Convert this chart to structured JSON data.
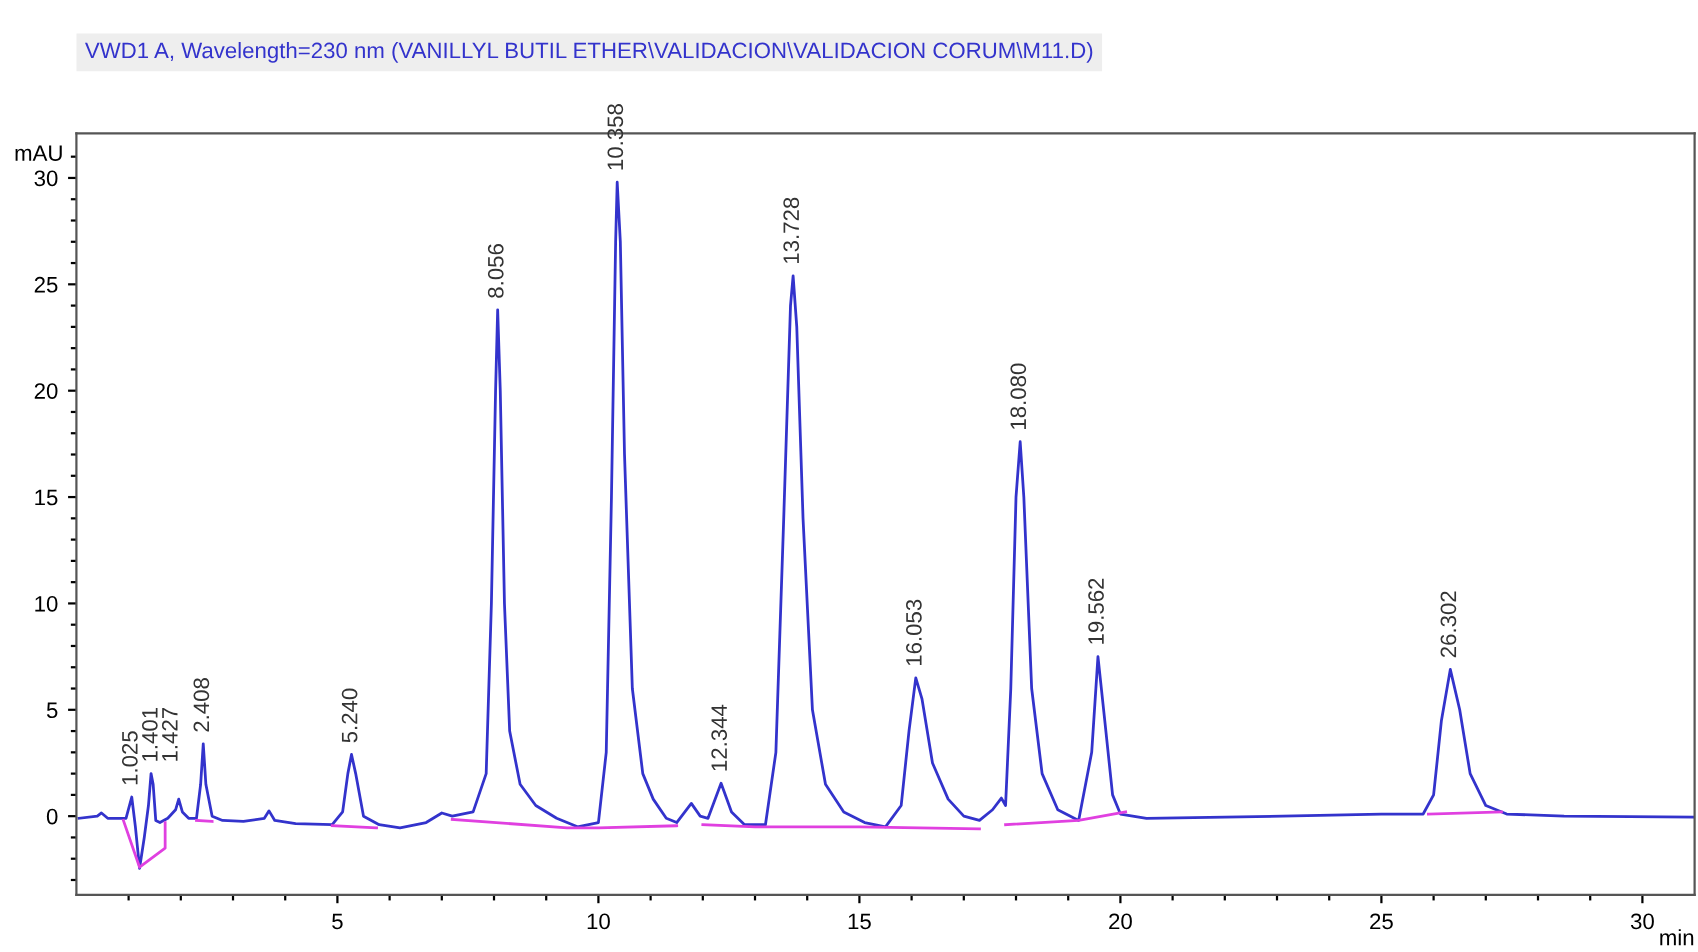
{
  "chart_data": {
    "type": "line",
    "title": "VWD1 A, Wavelength=230 nm (VANILLYL BUTIL ETHER\\VALIDACION\\VALIDACION CORUM\\M11.D)",
    "xlabel": "min",
    "ylabel": "mAU",
    "xlim": [
      0,
      31
    ],
    "ylim": [
      -3.7,
      32.1
    ],
    "xticks": [
      {
        "value": 1,
        "label": null
      },
      {
        "value": 2,
        "label": null
      },
      {
        "value": 3,
        "label": null
      },
      {
        "value": 4,
        "label": null
      },
      5,
      {
        "value": 6,
        "label": null
      },
      {
        "value": 7,
        "label": null
      },
      {
        "value": 8,
        "label": null
      },
      {
        "value": 9,
        "label": null
      },
      10,
      {
        "value": 11,
        "label": null
      },
      {
        "value": 12,
        "label": null
      },
      {
        "value": 13,
        "label": null
      },
      {
        "value": 14,
        "label": null
      },
      15,
      {
        "value": 16,
        "label": null
      },
      {
        "value": 17,
        "label": null
      },
      {
        "value": 18,
        "label": null
      },
      {
        "value": 19,
        "label": null
      },
      20,
      {
        "value": 21,
        "label": null
      },
      {
        "value": 22,
        "label": null
      },
      {
        "value": 23,
        "label": null
      },
      {
        "value": 24,
        "label": null
      },
      25,
      {
        "value": 26,
        "label": null
      },
      {
        "value": 27,
        "label": null
      },
      {
        "value": 28,
        "label": null
      },
      {
        "value": 29,
        "label": null
      },
      30
    ],
    "yticks": [
      {
        "value": -3,
        "label": null
      },
      {
        "value": -2,
        "label": null
      },
      {
        "value": -1,
        "label": null
      },
      0,
      {
        "value": 1,
        "label": null
      },
      {
        "value": 2,
        "label": null
      },
      {
        "value": 3,
        "label": null
      },
      {
        "value": 4,
        "label": null
      },
      5,
      {
        "value": 6,
        "label": null
      },
      {
        "value": 7,
        "label": null
      },
      {
        "value": 8,
        "label": null
      },
      {
        "value": 9,
        "label": null
      },
      10,
      {
        "value": 11,
        "label": null
      },
      {
        "value": 12,
        "label": null
      },
      {
        "value": 13,
        "label": null
      },
      {
        "value": 14,
        "label": null
      },
      15,
      {
        "value": 16,
        "label": null
      },
      {
        "value": 17,
        "label": null
      },
      {
        "value": 18,
        "label": null
      },
      {
        "value": 19,
        "label": null
      },
      20,
      {
        "value": 21,
        "label": null
      },
      {
        "value": 22,
        "label": null
      },
      {
        "value": 23,
        "label": null
      },
      {
        "value": 24,
        "label": null
      },
      25,
      {
        "value": 26,
        "label": null
      },
      {
        "value": 27,
        "label": null
      },
      {
        "value": 28,
        "label": null
      },
      {
        "value": 29,
        "label": null
      },
      30,
      {
        "value": 31,
        "label": null
      }
    ],
    "grid": false,
    "legend": false,
    "marker": "none",
    "line_style": "solid",
    "series": [
      {
        "color": "#3333cc",
        "x": [
          0.05,
          0.4,
          0.48,
          0.6,
          0.95,
          1.06,
          1.13,
          1.21,
          1.3,
          1.38,
          1.43,
          1.47,
          1.52,
          1.6,
          1.75,
          1.9,
          1.96,
          2.03,
          2.15,
          2.3,
          2.38,
          2.43,
          2.48,
          2.6,
          2.8,
          3.2,
          3.6,
          3.69,
          3.8,
          4.2,
          4.9,
          5.1,
          5.2,
          5.27,
          5.35,
          5.5,
          5.8,
          6.2,
          6.7,
          7.0,
          7.2,
          7.6,
          7.85,
          7.95,
          8.03,
          8.07,
          8.12,
          8.2,
          8.3,
          8.5,
          8.8,
          9.2,
          9.6,
          10.0,
          10.15,
          10.25,
          10.33,
          10.36,
          10.42,
          10.5,
          10.65,
          10.85,
          11.05,
          11.3,
          11.5,
          11.78,
          11.95,
          12.1,
          12.35,
          12.55,
          12.8,
          13.2,
          13.4,
          13.55,
          13.68,
          13.73,
          13.8,
          13.92,
          14.1,
          14.35,
          14.7,
          15.1,
          15.5,
          15.8,
          15.95,
          16.08,
          16.2,
          16.4,
          16.7,
          17.0,
          17.3,
          17.55,
          17.72,
          17.8,
          17.9,
          18.0,
          18.08,
          18.15,
          18.3,
          18.5,
          18.8,
          19.2,
          19.45,
          19.57,
          19.7,
          19.85,
          20.0,
          20.5,
          22.0,
          25.0,
          25.8,
          26.0,
          26.15,
          26.32,
          26.5,
          26.7,
          27.0,
          27.4,
          28.5,
          31.0
        ],
        "values": [
          -0.1,
          0.0,
          0.15,
          -0.1,
          -0.1,
          0.9,
          -0.5,
          -2.45,
          -1.0,
          0.5,
          2.0,
          1.5,
          -0.2,
          -0.3,
          -0.1,
          0.3,
          0.8,
          0.2,
          -0.1,
          -0.1,
          1.5,
          3.4,
          1.5,
          0.0,
          -0.2,
          -0.25,
          -0.1,
          0.25,
          -0.2,
          -0.35,
          -0.4,
          0.2,
          2.0,
          2.9,
          2.0,
          0.0,
          -0.4,
          -0.55,
          -0.3,
          0.15,
          0.0,
          0.2,
          2.0,
          10.0,
          20.0,
          23.8,
          20.0,
          10.0,
          4.0,
          1.5,
          0.5,
          -0.1,
          -0.5,
          -0.3,
          3.0,
          15.0,
          27.0,
          29.8,
          27.0,
          17.0,
          6.0,
          2.0,
          0.8,
          -0.1,
          -0.3,
          0.6,
          0.0,
          -0.1,
          1.55,
          0.2,
          -0.4,
          -0.4,
          3.0,
          14.0,
          24.0,
          25.4,
          23.0,
          14.0,
          5.0,
          1.5,
          0.2,
          -0.3,
          -0.5,
          0.5,
          4.0,
          6.5,
          5.5,
          2.5,
          0.8,
          0.0,
          -0.2,
          0.3,
          0.85,
          0.5,
          6.0,
          15.0,
          17.6,
          15.0,
          6.0,
          2.0,
          0.3,
          -0.2,
          3.0,
          7.5,
          4.5,
          1.0,
          0.1,
          -0.1,
          -0.05,
          0.1,
          0.1,
          1.0,
          4.5,
          6.9,
          5.0,
          2.0,
          0.5,
          0.1,
          0.0,
          -0.05
        ]
      },
      {
        "color": "#e040e0",
        "x": [
          0.9,
          1.21,
          1.7,
          1.7,
          null,
          2.3,
          2.6,
          null,
          4.9,
          5.75,
          null,
          7.2,
          9.4,
          10.0,
          11.5,
          null,
          12.0,
          13.0,
          15.0,
          17.3,
          null,
          17.8,
          19.2,
          20.1,
          null,
          25.9,
          27.3
        ],
        "values": [
          -0.2,
          -2.4,
          -1.5,
          -0.3,
          null,
          -0.2,
          -0.25,
          null,
          -0.45,
          -0.55,
          null,
          -0.15,
          -0.55,
          -0.55,
          -0.45,
          null,
          -0.4,
          -0.5,
          -0.5,
          -0.6,
          null,
          -0.4,
          -0.2,
          0.2,
          null,
          0.1,
          0.2
        ]
      }
    ],
    "annotations": [
      {
        "text": "1.025",
        "x": 1.06,
        "y": 0.9
      },
      {
        "text": "1.401",
        "x": 1.4,
        "y": 2.0
      },
      {
        "text": "1.427",
        "x": 1.43,
        "y": 2.0
      },
      {
        "text": "2.408",
        "x": 2.43,
        "y": 3.4
      },
      {
        "text": "5.240",
        "x": 5.27,
        "y": 2.9
      },
      {
        "text": "8.056",
        "x": 8.07,
        "y": 23.8
      },
      {
        "text": "10.358",
        "x": 10.36,
        "y": 29.8
      },
      {
        "text": "12.344",
        "x": 12.35,
        "y": 1.55
      },
      {
        "text": "13.728",
        "x": 13.73,
        "y": 25.4
      },
      {
        "text": "16.053",
        "x": 16.08,
        "y": 6.5
      },
      {
        "text": "18.080",
        "x": 18.08,
        "y": 17.6
      },
      {
        "text": "19.562",
        "x": 19.57,
        "y": 7.5
      },
      {
        "text": "26.302",
        "x": 26.32,
        "y": 6.9
      }
    ]
  }
}
